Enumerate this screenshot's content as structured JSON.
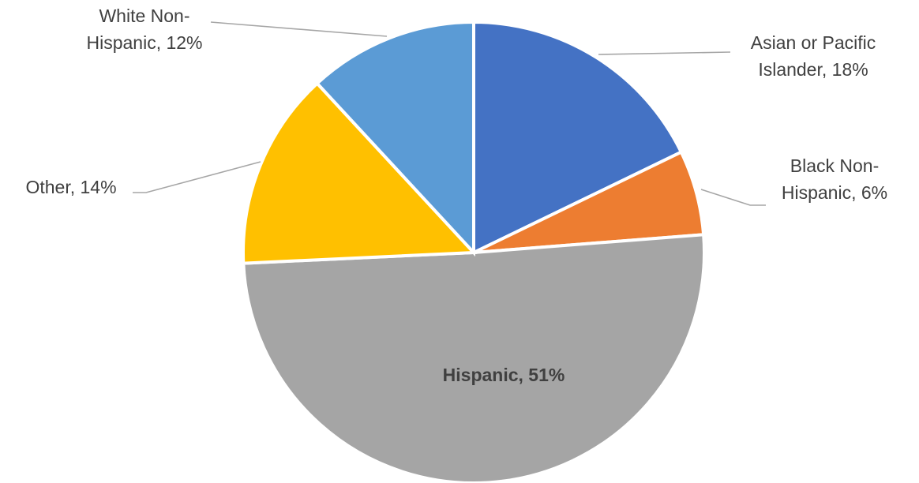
{
  "chart_data": {
    "type": "pie",
    "title": "",
    "start_angle_deg": 0,
    "direction": "clockwise",
    "slices": [
      {
        "label_lines": [
          "Asian or Pacific",
          "Islander, 18%"
        ],
        "name": "Asian or Pacific Islander",
        "value": 18,
        "color": "#4472c4"
      },
      {
        "label_lines": [
          "Black Non-",
          "Hispanic, 6%"
        ],
        "name": "Black Non-Hispanic",
        "value": 6,
        "color": "#ed7d31"
      },
      {
        "label_lines": [
          "Hispanic, 51%"
        ],
        "name": "Hispanic",
        "value": 51,
        "color": "#a5a5a5"
      },
      {
        "label_lines": [
          "Other, 14%"
        ],
        "name": "Other",
        "value": 14,
        "color": "#ffc000"
      },
      {
        "label_lines": [
          "White Non-",
          "Hispanic, 12%"
        ],
        "name": "White Non-Hispanic",
        "value": 12,
        "color": "#5b9bd5"
      }
    ]
  }
}
